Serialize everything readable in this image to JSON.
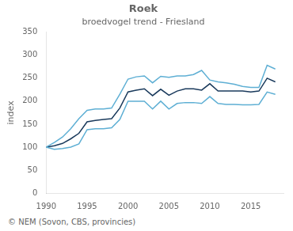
{
  "chart_data": {
    "type": "line",
    "title": "Roek",
    "subtitle": "broedvogel trend - Friesland",
    "ylabel": "index",
    "annotations": [
      "© NEM (Sovon, CBS, provincies)"
    ],
    "x": [
      1990,
      1991,
      1992,
      1993,
      1994,
      1995,
      1996,
      1997,
      1998,
      1999,
      2000,
      2001,
      2002,
      2003,
      2004,
      2005,
      2006,
      2007,
      2008,
      2009,
      2010,
      2011,
      2012,
      2013,
      2014,
      2015,
      2016,
      2017,
      2018
    ],
    "series": [
      {
        "color": "#5eafd4",
        "values": [
          100,
          110,
          122,
          140,
          162,
          180,
          183,
          183,
          185,
          215,
          248,
          253,
          255,
          240,
          254,
          252,
          255,
          255,
          258,
          267,
          246,
          242,
          240,
          237,
          232,
          230,
          230,
          278,
          270
        ]
      },
      {
        "color": "#5eafd4",
        "values": [
          100,
          95,
          97,
          100,
          107,
          138,
          140,
          140,
          142,
          160,
          200,
          200,
          200,
          183,
          200,
          183,
          195,
          197,
          197,
          195,
          210,
          195,
          193,
          193,
          192,
          192,
          193,
          220,
          215
        ]
      },
      {
        "color": "#1a3a5c",
        "values": [
          100,
          103,
          108,
          118,
          130,
          155,
          158,
          160,
          162,
          185,
          220,
          224,
          227,
          212,
          226,
          213,
          222,
          227,
          227,
          224,
          238,
          222,
          222,
          222,
          222,
          220,
          222,
          250,
          242
        ]
      }
    ],
    "xlim": [
      1990,
      2019
    ],
    "ylim": [
      0,
      350
    ],
    "xticks": [
      1990,
      1995,
      2000,
      2005,
      2010,
      2015
    ],
    "yticks": [
      0,
      50,
      100,
      150,
      200,
      250,
      300,
      350
    ],
    "grid": false
  }
}
